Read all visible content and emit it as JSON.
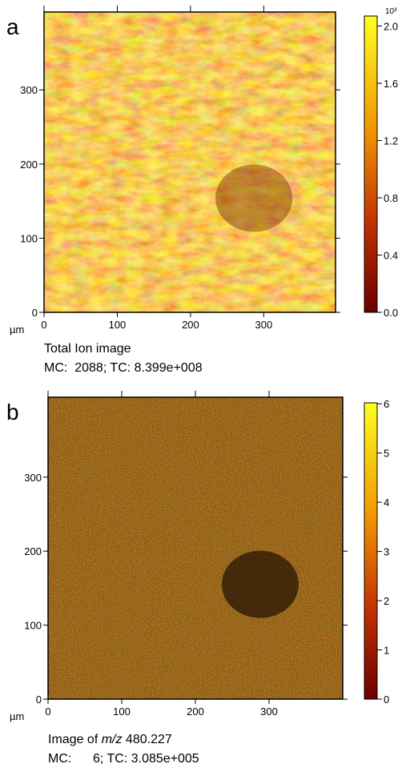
{
  "panels": [
    {
      "label": "a",
      "unit": "µm",
      "xlim": [
        0,
        398
      ],
      "ylim": [
        0,
        405
      ],
      "xticks": [
        0,
        100,
        200,
        300
      ],
      "yticks": [
        0,
        100,
        200,
        300
      ],
      "colorbar": {
        "lim": [
          0,
          2.07
        ],
        "exponent": "10³",
        "ticks": [
          {
            "value": 0,
            "label": "0.0"
          },
          0.4,
          0.8,
          1.2,
          1.6,
          {
            "value": 2,
            "label": "2.0"
          }
        ]
      },
      "caption": {
        "prefix": "Total Ion image"
      },
      "stats": "MC:  2088; TC: 8.399e+008"
    },
    {
      "label": "b",
      "unit": "µm",
      "xlim": [
        0,
        400
      ],
      "ylim": [
        0,
        408
      ],
      "xticks": [
        0,
        100,
        200,
        300
      ],
      "yticks": [
        0,
        100,
        200,
        300
      ],
      "colorbar": {
        "lim": [
          0,
          6.02
        ],
        "ticks": [
          0,
          1,
          2,
          3,
          4,
          5,
          6
        ]
      },
      "caption": {
        "prefix": "Image of ",
        "italic": "m/z",
        "suffix": " 480.227"
      },
      "stats": "MC:      6; TC: 3.085e+005"
    }
  ]
}
